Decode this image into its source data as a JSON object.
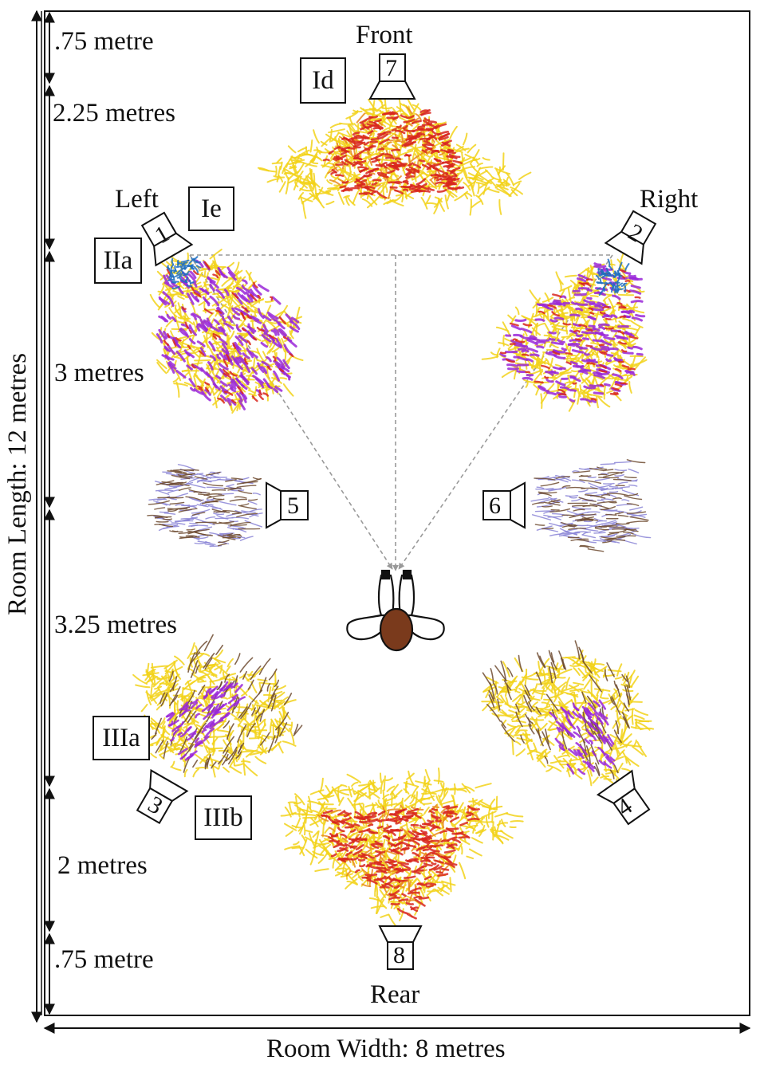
{
  "labels": {
    "room_length": "Room Length: 12  metres",
    "room_width": "Room Width: 8 metres",
    "front": "Front",
    "rear": "Rear",
    "left": "Left",
    "right": "Right"
  },
  "segments": [
    {
      "text": ".75 metre"
    },
    {
      "text": "2.25 metres"
    },
    {
      "text": "3 metres"
    },
    {
      "text": "3.25 metres"
    },
    {
      "text": "2 metres"
    },
    {
      "text": ".75 metre"
    }
  ],
  "zones": {
    "Id": "Id",
    "Ie": "Ie",
    "IIa": "IIa",
    "IIIa": "IIIa",
    "IIIb": "IIIb"
  },
  "speakers": {
    "s1": "1",
    "s2": "2",
    "s3": "3",
    "s4": "4",
    "s5": "5",
    "s6": "6",
    "s7": "7",
    "s8": "8"
  },
  "colors": {
    "yellow": "#f2d21a",
    "red": "#d8261d",
    "orange": "#e9891c",
    "purple": "#9a28d8",
    "blue": "#1f6fc0",
    "brown": "#6d4a2f",
    "lavender": "#8a84d6",
    "head": "#7a3a1c",
    "dashes": "#9a9a9a"
  }
}
